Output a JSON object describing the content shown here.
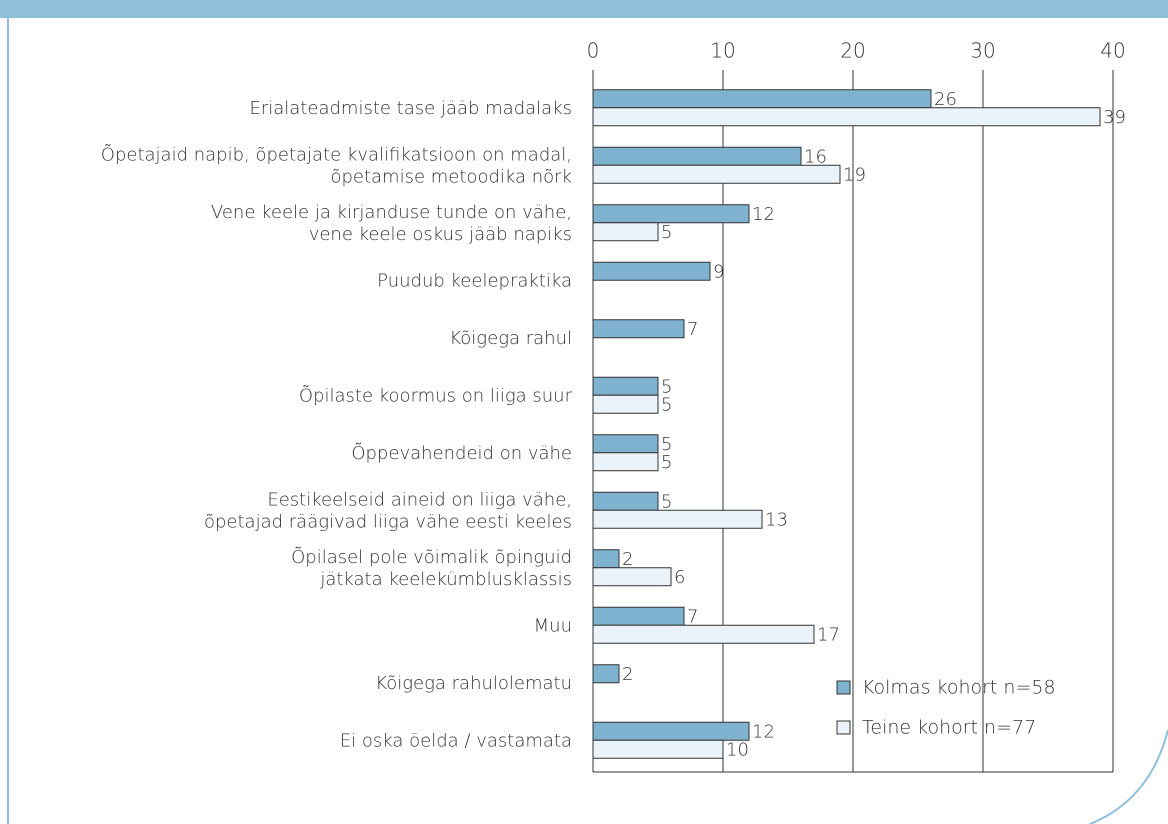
{
  "chart_data": {
    "type": "bar",
    "orientation": "horizontal",
    "categories": [
      [
        "Erialateadmiste tase jääb madalaks"
      ],
      [
        "Õpetajaid napib, õpetajate kvalifikatsioon on madal,",
        "õpetamise metoodika nõrk"
      ],
      [
        "Vene keele ja kirjanduse tunde on vähe,",
        "vene keele oskus jääb napiks"
      ],
      [
        "Puudub keelepraktika"
      ],
      [
        "Kõigega rahul"
      ],
      [
        "Õpilaste koormus on liiga suur"
      ],
      [
        "Õppevahendeid on vähe"
      ],
      [
        "Eestikeelseid aineid on liiga vähe,",
        "õpetajad räägivad liiga vähe eesti keeles"
      ],
      [
        "Õpilasel pole võimalik õpinguid",
        "jätkata keelekümblusklassis"
      ],
      [
        "Muu"
      ],
      [
        "Kõigega rahulolematu"
      ],
      [
        "Ei oska öelda / vastamata"
      ]
    ],
    "series": [
      {
        "name": "Kolmas kohort n=58",
        "color": "#7fb2cf",
        "values": [
          26,
          16,
          12,
          9,
          7,
          5,
          5,
          5,
          2,
          7,
          2,
          12
        ]
      },
      {
        "name": "Teine kohort n=77",
        "color": "#e9f3f9",
        "values": [
          39,
          19,
          5,
          null,
          null,
          5,
          5,
          13,
          6,
          17,
          null,
          10
        ]
      }
    ],
    "xlim": [
      0,
      40
    ],
    "xticks": [
      0,
      10,
      20,
      30,
      40
    ],
    "grid": true,
    "legend": "lower right"
  }
}
